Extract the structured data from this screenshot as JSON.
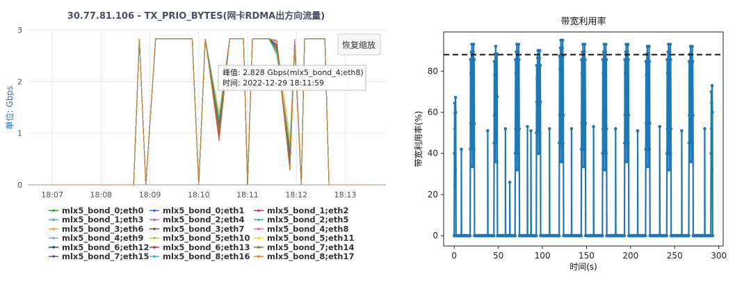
{
  "left_chart": {
    "title": "30.77.81.106 - TX_PRIO_BYTES(网卡RDMA出方向流量)",
    "ylabel": "单位: Gbps",
    "y_ticks": [
      "0",
      "1",
      "2",
      "3"
    ],
    "x_ticks": [
      "18:07",
      "18:08",
      "18:09",
      "18:10",
      "18:11",
      "18:12",
      "18:13"
    ],
    "reset_button_label": "恢复缩放",
    "tooltip": {
      "line1": "峰值: 2.828 Gbps(mlx5_bond_4;eth8)",
      "line2": "时间: 2022-12-29 18:11:59"
    },
    "legend": [
      {
        "label": "mlx5_bond_0;eth0",
        "color": "#2ca02c"
      },
      {
        "label": "mlx5_bond_0;eth1",
        "color": "#4c5fd0"
      },
      {
        "label": "mlx5_bond_1;eth2",
        "color": "#e0245e"
      },
      {
        "label": "mlx5_bond_1;eth3",
        "color": "#5bb0e8"
      },
      {
        "label": "mlx5_bond_2;eth4",
        "color": "#b07cd6"
      },
      {
        "label": "mlx5_bond_2;eth5",
        "color": "#3fb7a8"
      },
      {
        "label": "mlx5_bond_3;eth6",
        "color": "#f0a030"
      },
      {
        "label": "mlx5_bond_3;eth7",
        "color": "#8c4a2f"
      },
      {
        "label": "mlx5_bond_4;eth8",
        "color": "#e060c0"
      },
      {
        "label": "mlx5_bond_4;eth9",
        "color": "#7fa8d8"
      },
      {
        "label": "mlx5_bond_5;eth10",
        "color": "#9acd32"
      },
      {
        "label": "mlx5_bond_5;eth11",
        "color": "#f2d43a"
      },
      {
        "label": "mlx5_bond_6;eth12",
        "color": "#1f4fa0"
      },
      {
        "label": "mlx5_bond_6;eth13",
        "color": "#c0392b"
      },
      {
        "label": "mlx5_bond_7;eth14",
        "color": "#6b8e23"
      },
      {
        "label": "mlx5_bond_7;eth15",
        "color": "#555577"
      },
      {
        "label": "mlx5_bond_8;eth16",
        "color": "#2eb8b8"
      },
      {
        "label": "mlx5_bond_8;eth17",
        "color": "#e67e22"
      }
    ]
  },
  "right_chart": {
    "title": "带宽利用率",
    "xlabel": "时间(s)",
    "ylabel": "带宽利用率(%)",
    "y_ticks": [
      "0",
      "20",
      "40",
      "60",
      "80"
    ],
    "x_ticks": [
      "0",
      "50",
      "100",
      "150",
      "200",
      "250",
      "300"
    ],
    "color": "#1f77b4"
  },
  "chart_data": [
    {
      "type": "line",
      "title": "30.77.81.106 - TX_PRIO_BYTES(网卡RDMA出方向流量)",
      "ylabel": "单位: Gbps",
      "xlabel": "",
      "ylim": [
        0,
        3
      ],
      "grid": true,
      "legend_placement": "bottom",
      "x": [
        "18:06:50",
        "18:08:40",
        "18:08:47",
        "18:08:55",
        "18:09:07",
        "18:09:52",
        "18:10:00",
        "18:10:08",
        "18:10:25",
        "18:10:38",
        "18:10:55",
        "18:11:00",
        "18:11:06",
        "18:11:26",
        "18:11:36",
        "18:11:52",
        "18:11:58",
        "18:12:06",
        "18:12:10",
        "18:12:35",
        "18:12:40",
        "18:13:35"
      ],
      "series": [
        {
          "name": "mlx5_bond_0;eth0",
          "values": [
            0,
            0,
            2.83,
            0,
            2.83,
            2.83,
            0,
            2.83,
            0.9,
            2.83,
            2.83,
            0,
            2.83,
            2.83,
            2.7,
            0.5,
            2.82,
            0,
            2.83,
            2.83,
            0,
            0
          ]
        },
        {
          "name": "mlx5_bond_0;eth1",
          "values": [
            0,
            0,
            2.83,
            0,
            2.83,
            2.83,
            0,
            2.83,
            0.95,
            2.83,
            2.83,
            0,
            2.83,
            2.83,
            2.72,
            0.45,
            2.8,
            0,
            2.83,
            2.83,
            0,
            0
          ]
        },
        {
          "name": "mlx5_bond_1;eth2",
          "values": [
            0,
            0,
            2.83,
            0,
            2.83,
            2.83,
            0,
            2.83,
            1.1,
            2.83,
            2.83,
            0,
            2.83,
            2.83,
            2.65,
            0.3,
            2.81,
            0,
            2.83,
            2.83,
            0,
            0
          ]
        },
        {
          "name": "mlx5_bond_1;eth3",
          "values": [
            0,
            0,
            2.83,
            0,
            2.83,
            2.83,
            0,
            2.83,
            1.2,
            2.83,
            2.83,
            0,
            2.83,
            2.83,
            2.6,
            0.6,
            2.79,
            0,
            2.83,
            2.83,
            0,
            0
          ]
        },
        {
          "name": "mlx5_bond_2;eth4",
          "values": [
            0,
            0,
            2.83,
            0,
            2.83,
            2.83,
            0,
            2.83,
            1.0,
            2.83,
            2.83,
            0,
            2.83,
            2.83,
            2.55,
            0.7,
            2.78,
            0,
            2.83,
            2.83,
            0,
            0
          ]
        },
        {
          "name": "mlx5_bond_2;eth5",
          "values": [
            0,
            0,
            2.83,
            0,
            2.83,
            2.83,
            0,
            2.83,
            1.3,
            2.83,
            2.83,
            0,
            2.83,
            2.83,
            2.5,
            0.8,
            2.77,
            0,
            2.83,
            2.83,
            0,
            0
          ]
        },
        {
          "name": "mlx5_bond_3;eth6",
          "values": [
            0,
            0,
            2.83,
            0,
            2.83,
            2.83,
            0,
            2.83,
            1.4,
            2.83,
            2.83,
            0,
            2.83,
            2.83,
            2.75,
            0.9,
            2.76,
            0,
            2.83,
            2.83,
            0,
            0
          ]
        },
        {
          "name": "mlx5_bond_3;eth7",
          "values": [
            0,
            0,
            2.83,
            0,
            2.83,
            2.83,
            0,
            2.83,
            0.85,
            2.83,
            2.83,
            0,
            2.83,
            2.83,
            2.78,
            0.35,
            2.75,
            0,
            2.83,
            2.83,
            0,
            0
          ]
        },
        {
          "name": "mlx5_bond_4;eth8",
          "values": [
            0,
            0,
            2.83,
            0,
            2.83,
            2.83,
            0,
            2.83,
            1.05,
            2.83,
            2.83,
            0,
            2.83,
            2.83,
            2.68,
            0.55,
            2.828,
            0,
            2.83,
            2.83,
            0,
            0
          ]
        },
        {
          "name": "mlx5_bond_4;eth9",
          "values": [
            0,
            0,
            2.83,
            0,
            2.83,
            2.83,
            0,
            2.83,
            1.15,
            2.83,
            2.83,
            0,
            2.83,
            2.83,
            2.62,
            0.65,
            2.74,
            0,
            2.83,
            2.83,
            0,
            0
          ]
        },
        {
          "name": "mlx5_bond_5;eth10",
          "values": [
            0,
            0,
            2.83,
            0,
            2.83,
            2.83,
            0,
            2.83,
            1.25,
            2.83,
            2.83,
            0,
            2.83,
            2.83,
            2.58,
            0.75,
            2.73,
            0,
            2.83,
            2.83,
            0,
            0
          ]
        },
        {
          "name": "mlx5_bond_5;eth11",
          "values": [
            0,
            0,
            2.83,
            0,
            2.83,
            2.83,
            0,
            2.83,
            1.35,
            2.83,
            2.83,
            0,
            2.83,
            2.83,
            2.52,
            0.85,
            2.72,
            0,
            2.83,
            2.83,
            0,
            0
          ]
        },
        {
          "name": "mlx5_bond_6;eth12",
          "values": [
            0,
            0,
            2.83,
            0,
            2.83,
            2.83,
            0,
            2.83,
            0.92,
            2.83,
            2.83,
            0,
            2.83,
            2.83,
            2.7,
            0.4,
            2.71,
            0,
            2.83,
            2.83,
            0,
            0
          ]
        },
        {
          "name": "mlx5_bond_6;eth13",
          "values": [
            0,
            0,
            2.83,
            0,
            2.83,
            2.83,
            0,
            2.83,
            0.98,
            2.83,
            2.83,
            0,
            2.83,
            2.83,
            2.66,
            0.28,
            2.7,
            0,
            2.83,
            2.83,
            0,
            0
          ]
        },
        {
          "name": "mlx5_bond_7;eth14",
          "values": [
            0,
            0,
            2.83,
            0,
            2.83,
            2.83,
            0,
            2.83,
            1.08,
            2.83,
            2.83,
            0,
            2.83,
            2.83,
            2.64,
            0.5,
            2.69,
            0,
            2.83,
            2.83,
            0,
            0
          ]
        },
        {
          "name": "mlx5_bond_7;eth15",
          "values": [
            0,
            0,
            2.83,
            0,
            2.83,
            2.83,
            0,
            2.83,
            1.18,
            2.83,
            2.83,
            0,
            2.83,
            2.83,
            2.6,
            0.6,
            2.68,
            0,
            2.83,
            2.83,
            0,
            0
          ]
        },
        {
          "name": "mlx5_bond_8;eth16",
          "values": [
            0,
            0,
            2.83,
            0,
            2.83,
            2.83,
            0,
            2.83,
            1.28,
            2.83,
            2.83,
            0,
            2.83,
            2.83,
            2.56,
            0.7,
            2.67,
            0,
            2.83,
            2.83,
            0,
            0
          ]
        },
        {
          "name": "mlx5_bond_8;eth17",
          "values": [
            0,
            0,
            2.83,
            0,
            2.83,
            2.83,
            0,
            2.83,
            0.88,
            2.83,
            2.83,
            0,
            2.83,
            2.83,
            2.8,
            0.32,
            2.66,
            0,
            2.83,
            2.83,
            0,
            0
          ]
        }
      ]
    },
    {
      "type": "line",
      "title": "带宽利用率",
      "xlabel": "时间(s)",
      "ylabel": "带宽利用率(%)",
      "xlim": [
        -12,
        305
      ],
      "ylim": [
        -5,
        99
      ],
      "grid": false,
      "threshold_line": 88,
      "bursts": [
        {
          "start": 0,
          "end": 2,
          "peak": 70,
          "low": 40
        },
        {
          "start": 18,
          "end": 23,
          "peak": 93,
          "low": 42
        },
        {
          "start": 45,
          "end": 49,
          "peak": 92,
          "low": 45
        },
        {
          "start": 69,
          "end": 74,
          "peak": 93,
          "low": 40
        },
        {
          "start": 93,
          "end": 98,
          "peak": 90,
          "low": 50
        },
        {
          "start": 119,
          "end": 124,
          "peak": 95,
          "low": 45
        },
        {
          "start": 144,
          "end": 149,
          "peak": 93,
          "low": 42
        },
        {
          "start": 168,
          "end": 173,
          "peak": 93,
          "low": 40
        },
        {
          "start": 193,
          "end": 198,
          "peak": 93,
          "low": 45
        },
        {
          "start": 217,
          "end": 222,
          "peak": 92,
          "low": 42
        },
        {
          "start": 241,
          "end": 246,
          "peak": 93,
          "low": 40
        },
        {
          "start": 266,
          "end": 271,
          "peak": 92,
          "low": 45
        },
        {
          "start": 291,
          "end": 293,
          "peak": 76,
          "low": 40
        }
      ],
      "isolated_points": [
        {
          "x": 8,
          "y": 42
        },
        {
          "x": 38,
          "y": 51
        },
        {
          "x": 58,
          "y": 52
        },
        {
          "x": 63,
          "y": 26
        },
        {
          "x": 83,
          "y": 53
        },
        {
          "x": 87,
          "y": 51
        },
        {
          "x": 108,
          "y": 52
        },
        {
          "x": 133,
          "y": 52
        },
        {
          "x": 158,
          "y": 53
        },
        {
          "x": 183,
          "y": 52
        },
        {
          "x": 208,
          "y": 51
        },
        {
          "x": 233,
          "y": 53
        },
        {
          "x": 258,
          "y": 51
        },
        {
          "x": 284,
          "y": 52
        }
      ]
    }
  ]
}
